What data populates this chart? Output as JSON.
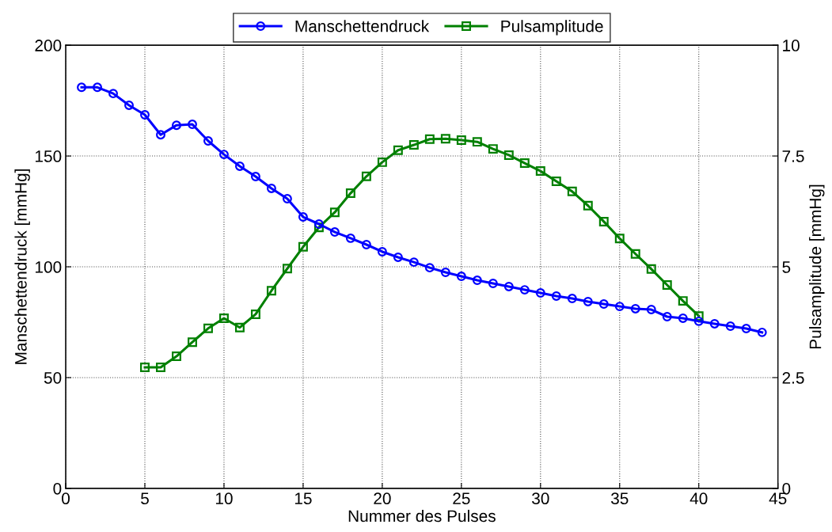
{
  "chart_data": {
    "type": "line",
    "xlabel": "Nummer des Pulses",
    "ylabel": "Manschettendruck [mmHg]",
    "y2label": "Pulsamplitude [mmHg]",
    "xlim": [
      0,
      45
    ],
    "xticks": [
      0,
      5,
      10,
      15,
      20,
      25,
      30,
      35,
      40,
      45
    ],
    "ylim": [
      0,
      200
    ],
    "yticks": [
      0,
      50,
      100,
      150,
      200
    ],
    "y2lim": [
      0,
      10
    ],
    "y2ticks": [
      0,
      2.5,
      5,
      7.5,
      10
    ],
    "grid": true,
    "legend": "top",
    "line_style": "solid",
    "series": [
      {
        "name": "Manschettendruck",
        "color": "#0000ff",
        "marker": "circle",
        "x": [
          1,
          2,
          3,
          4,
          5,
          6,
          7,
          8,
          9,
          10,
          11,
          12,
          13,
          14,
          15,
          16,
          17,
          18,
          19,
          20,
          21,
          22,
          23,
          24,
          25,
          26,
          27,
          28,
          29,
          30,
          31,
          32,
          33,
          34,
          35,
          36,
          37,
          38,
          39,
          40,
          41,
          42,
          43,
          44
        ],
        "values": [
          181,
          181,
          178.2,
          172.9,
          168.6,
          159.6,
          163.9,
          164.3,
          156.8,
          150.7,
          145.4,
          140.7,
          135.4,
          130.7,
          122.5,
          119.3,
          115.7,
          112.9,
          110,
          106.8,
          104.3,
          102.1,
          99.6,
          97.5,
          95.7,
          93.9,
          92.5,
          91.1,
          89.6,
          88.2,
          86.8,
          85.7,
          84.3,
          83.2,
          82.1,
          81.1,
          80.7,
          77.5,
          76.8,
          75.4,
          74.3,
          73.2,
          72.1,
          70.4
        ]
      },
      {
        "name": "Pulsamplitude",
        "color": "#008000",
        "marker": "square",
        "axis": "y2",
        "x": [
          5,
          6,
          7,
          8,
          9,
          10,
          11,
          12,
          13,
          14,
          15,
          16,
          17,
          18,
          19,
          20,
          21,
          22,
          23,
          24,
          25,
          26,
          27,
          28,
          29,
          30,
          31,
          32,
          33,
          34,
          35,
          36,
          37,
          38,
          39,
          40
        ],
        "values": [
          2.73,
          2.73,
          2.98,
          3.3,
          3.61,
          3.84,
          3.63,
          3.93,
          4.46,
          4.96,
          5.45,
          5.89,
          6.23,
          6.66,
          7.04,
          7.36,
          7.63,
          7.75,
          7.88,
          7.89,
          7.86,
          7.82,
          7.66,
          7.52,
          7.34,
          7.16,
          6.93,
          6.7,
          6.38,
          6.02,
          5.64,
          5.29,
          4.95,
          4.59,
          4.23,
          3.89
        ]
      }
    ]
  }
}
